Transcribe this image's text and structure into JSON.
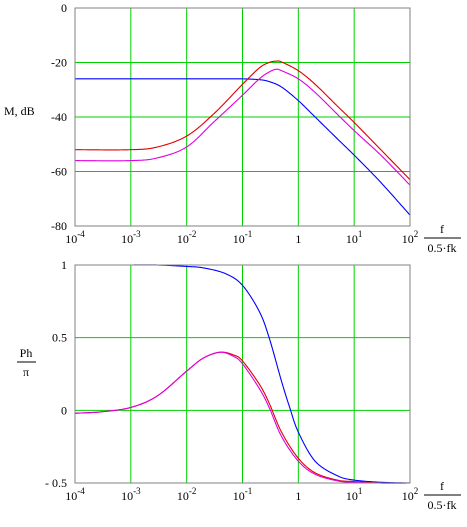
{
  "chart_data": [
    {
      "type": "line",
      "title": "",
      "ylabel": "M, dB",
      "xlabel_num": "f",
      "xlabel_den": "0.5·fk",
      "xscale": "log",
      "xlim": [
        0.0001,
        100
      ],
      "ylim": [
        -80,
        0
      ],
      "yticks": [
        "0",
        "-20",
        "-40",
        "-60",
        "-80"
      ],
      "ytick_values": [
        0,
        -20,
        -40,
        -60,
        -80
      ],
      "xtick_values": [
        0.0001,
        0.001,
        0.01,
        0.1,
        1,
        10,
        100
      ],
      "xtick_labels": [
        {
          "base": "10",
          "exp": "-4"
        },
        {
          "base": "10",
          "exp": "-3"
        },
        {
          "base": "10",
          "exp": "-2"
        },
        {
          "base": "10",
          "exp": "-1"
        },
        {
          "base": "1",
          "exp": ""
        },
        {
          "base": "10",
          "exp": "1"
        },
        {
          "base": "10",
          "exp": "2"
        }
      ],
      "grid": true,
      "series": [
        {
          "color": "#0000ff",
          "x": [
            0.0001,
            0.001,
            0.01,
            0.05,
            0.1,
            0.2,
            0.3,
            0.5,
            1,
            2,
            5,
            10,
            30,
            100
          ],
          "y": [
            -26,
            -26,
            -26,
            -26,
            -26,
            -26.3,
            -27,
            -29,
            -34,
            -40,
            -48,
            -54,
            -64,
            -76
          ]
        },
        {
          "color": "#e00000",
          "x": [
            0.0001,
            0.001,
            0.003,
            0.01,
            0.03,
            0.1,
            0.2,
            0.3,
            0.4,
            0.5,
            1,
            2,
            5,
            10,
            30,
            100
          ],
          "y": [
            -52,
            -52,
            -51,
            -47,
            -39,
            -28,
            -22,
            -20,
            -19.5,
            -19.8,
            -23,
            -28,
            -36,
            -42,
            -52,
            -63
          ]
        },
        {
          "color": "#e000e0",
          "x": [
            0.0001,
            0.001,
            0.003,
            0.01,
            0.03,
            0.1,
            0.2,
            0.3,
            0.4,
            0.5,
            1,
            2,
            5,
            10,
            30,
            100
          ],
          "y": [
            -56,
            -56,
            -55,
            -51,
            -42,
            -32,
            -26,
            -23.5,
            -22.5,
            -23,
            -26,
            -31,
            -39,
            -45,
            -54,
            -65
          ]
        }
      ]
    },
    {
      "type": "line",
      "title": "",
      "ylabel_num": "Ph",
      "ylabel_den": "π",
      "xlabel_num": "f",
      "xlabel_den": "0.5·fk",
      "xscale": "log",
      "xlim": [
        0.0001,
        100
      ],
      "ylim": [
        -0.5,
        1
      ],
      "yticks": [
        "1",
        "0.5",
        "0",
        "- 0.5"
      ],
      "ytick_values": [
        1,
        0.5,
        0,
        -0.5
      ],
      "xtick_values": [
        0.0001,
        0.001,
        0.01,
        0.1,
        1,
        10,
        100
      ],
      "xtick_labels": [
        {
          "base": "10",
          "exp": "-4"
        },
        {
          "base": "10",
          "exp": "-3"
        },
        {
          "base": "10",
          "exp": "-2"
        },
        {
          "base": "10",
          "exp": "-1"
        },
        {
          "base": "1",
          "exp": ""
        },
        {
          "base": "10",
          "exp": "1"
        },
        {
          "base": "10",
          "exp": "2"
        }
      ],
      "grid": true,
      "series": [
        {
          "color": "#0000ff",
          "x": [
            0.001,
            0.003,
            0.01,
            0.02,
            0.05,
            0.1,
            0.2,
            0.3,
            0.5,
            0.7,
            1,
            2,
            5,
            10,
            30,
            100
          ],
          "y": [
            1,
            1,
            0.99,
            0.98,
            0.94,
            0.86,
            0.68,
            0.5,
            0.2,
            0.02,
            -0.15,
            -0.35,
            -0.45,
            -0.48,
            -0.495,
            -0.5
          ]
        },
        {
          "color": "#e00000",
          "x": [
            0.0001,
            0.0003,
            0.001,
            0.003,
            0.01,
            0.02,
            0.04,
            0.07,
            0.1,
            0.2,
            0.3,
            0.5,
            1,
            2,
            5,
            10,
            30,
            100
          ],
          "y": [
            -0.02,
            -0.01,
            0.02,
            0.1,
            0.27,
            0.36,
            0.4,
            0.38,
            0.34,
            0.18,
            0.05,
            -0.15,
            -0.33,
            -0.43,
            -0.48,
            -0.49,
            -0.5,
            -0.5
          ]
        },
        {
          "color": "#e000e0",
          "x": [
            0.0001,
            0.0003,
            0.001,
            0.003,
            0.01,
            0.02,
            0.04,
            0.07,
            0.1,
            0.2,
            0.3,
            0.5,
            1,
            2,
            5,
            10,
            30,
            100
          ],
          "y": [
            -0.02,
            -0.01,
            0.02,
            0.1,
            0.27,
            0.36,
            0.4,
            0.37,
            0.32,
            0.15,
            0.02,
            -0.18,
            -0.35,
            -0.44,
            -0.485,
            -0.495,
            -0.5,
            -0.5
          ]
        }
      ]
    }
  ]
}
